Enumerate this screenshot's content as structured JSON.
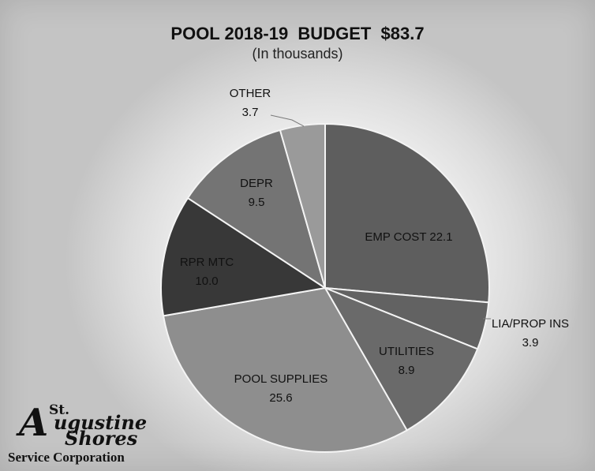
{
  "chart_data": {
    "type": "pie",
    "title": "POOL 2018-19  BUDGET  $83.7",
    "subtitle": "(In thousands)",
    "slices": [
      {
        "label": "EMP COST",
        "value": 22.1,
        "display": "EMP COST 22.1",
        "color": "#5e5e5e"
      },
      {
        "label": "LIA/PROP INS",
        "value": 3.9,
        "display": "3.9",
        "color": "#626262"
      },
      {
        "label": "UTILITIES",
        "value": 8.9,
        "display": "8.9",
        "color": "#6a6a6a"
      },
      {
        "label": "POOL SUPPLIES",
        "value": 25.6,
        "display": "25.6",
        "color": "#8e8e8e"
      },
      {
        "label": "RPR MTC",
        "value": 10.0,
        "display": "10.0",
        "color": "#383838"
      },
      {
        "label": "DEPR",
        "value": 9.5,
        "display": "9.5",
        "color": "#747474"
      },
      {
        "label": "OTHER",
        "value": 3.7,
        "display": "3.7",
        "color": "#9a9a9a"
      }
    ]
  },
  "logo": {
    "line1": "St.",
    "line2_initial": "A",
    "line2_rest": "ugustine",
    "line3": "Shores",
    "line4": "Service Corporation"
  }
}
